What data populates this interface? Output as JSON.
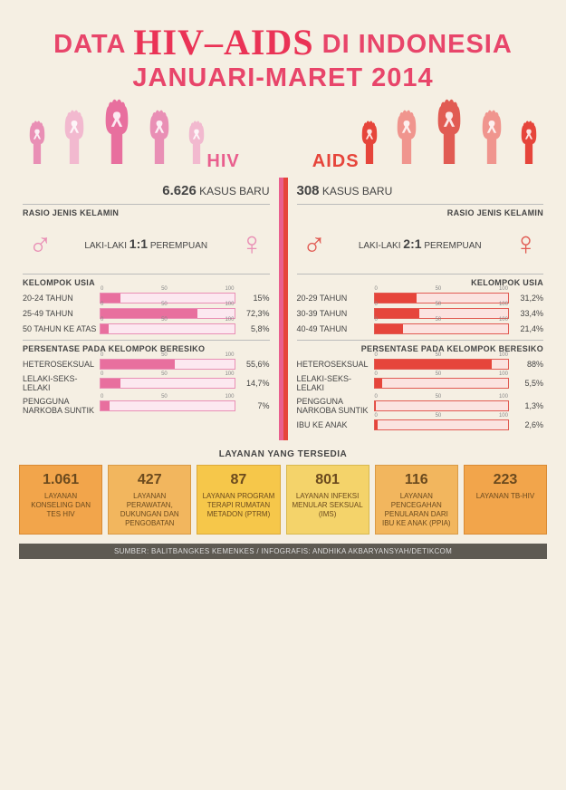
{
  "title": {
    "pre": "DATA",
    "mid": "HIV–AIDS",
    "post": "DI INDONESIA",
    "line2": "JANUARI-MARET 2014"
  },
  "labels": {
    "hiv": "HIV",
    "aids": "AIDS"
  },
  "hiv": {
    "color": "#e86f9e",
    "light": "#f5b9cf",
    "cases_num": "6.626",
    "cases_txt": "KASUS BARU",
    "ratio_head": "RASIO JENIS KELAMIN",
    "male": "LAKI-LAKI",
    "ratio": "1:1",
    "female": "PEREMPUAN",
    "age_head": "KELOMPOK USIA",
    "age": [
      {
        "label": "20-24 TAHUN",
        "pct": 15,
        "txt": "15%"
      },
      {
        "label": "25-49 TAHUN",
        "pct": 72.3,
        "txt": "72,3%"
      },
      {
        "label": "50 TAHUN KE ATAS",
        "pct": 5.8,
        "txt": "5,8%"
      }
    ],
    "risk_head": "PERSENTASE PADA KELOMPOK BERESIKO",
    "risk": [
      {
        "label": "HETEROSEKSUAL",
        "pct": 55.6,
        "txt": "55,6%"
      },
      {
        "label": "LELAKI-SEKS-LELAKI",
        "pct": 14.7,
        "txt": "14,7%"
      },
      {
        "label": "PENGGUNA NARKOBA SUNTIK",
        "pct": 7,
        "txt": "7%"
      }
    ]
  },
  "aids": {
    "color": "#e6453b",
    "light": "#f2a8a2",
    "cases_num": "308",
    "cases_txt": "KASUS BARU",
    "ratio_head": "RASIO JENIS KELAMIN",
    "male": "LAKI-LAKI",
    "ratio": "2:1",
    "female": "PEREMPUAN",
    "age_head": "KELOMPOK USIA",
    "age": [
      {
        "label": "20-29 TAHUN",
        "pct": 31.2,
        "txt": "31,2%"
      },
      {
        "label": "30-39 TAHUN",
        "pct": 33.4,
        "txt": "33,4%"
      },
      {
        "label": "40-49 TAHUN",
        "pct": 21.4,
        "txt": "21,4%"
      }
    ],
    "risk_head": "PERSENTASE PADA KELOMPOK BERESIKO",
    "risk": [
      {
        "label": "HETEROSEKSUAL",
        "pct": 88,
        "txt": "88%"
      },
      {
        "label": "LELAKI-SEKS-LELAKI",
        "pct": 5.5,
        "txt": "5,5%"
      },
      {
        "label": "PENGGUNA NARKOBA SUNTIK",
        "pct": 1.3,
        "txt": "1,3%"
      },
      {
        "label": "IBU KE ANAK",
        "pct": 2.6,
        "txt": "2,6%"
      }
    ]
  },
  "services_head": "LAYANAN YANG TERSEDIA",
  "services": [
    {
      "num": "1.061",
      "txt": "LAYANAN KONSELING DAN TES HIV",
      "bg": "#f2a54b",
      "bd": "#d98a33"
    },
    {
      "num": "427",
      "txt": "LAYANAN PERAWATAN, DUKUNGAN DAN PENGOBATAN",
      "bg": "#f2b65e",
      "bd": "#d99a45"
    },
    {
      "num": "87",
      "txt": "LAYANAN PROGRAM TERAPI RUMATAN METADON (PTRM)",
      "bg": "#f6c74a",
      "bd": "#dca93a"
    },
    {
      "num": "801",
      "txt": "LAYANAN INFEKSI MENULAR SEKSUAL (IMS)",
      "bg": "#f4d36a",
      "bd": "#d8b94f"
    },
    {
      "num": "116",
      "txt": "LAYANAN PENCEGAHAN PENULARAN DARI IBU KE ANAK (PPIA)",
      "bg": "#f2b65e",
      "bd": "#d99a45"
    },
    {
      "num": "223",
      "txt": "LAYANAN TB-HIV",
      "bg": "#f2a54b",
      "bd": "#d98a33"
    }
  ],
  "footer": "SUMBER: BALITBANGKES KEMENKES / INFOGRAFIS: ANDHIKA AKBARYANSYAH/DETIKCOM",
  "ticks": [
    "0",
    "50",
    "100"
  ],
  "hands_left": [
    "#e98fb5",
    "#f2b9cf",
    "#e86f9e",
    "#e98fb5",
    "#f2b9cf"
  ],
  "hands_right": [
    "#e6453b",
    "#f0958e",
    "#e15b53",
    "#f0958e",
    "#e6453b"
  ]
}
